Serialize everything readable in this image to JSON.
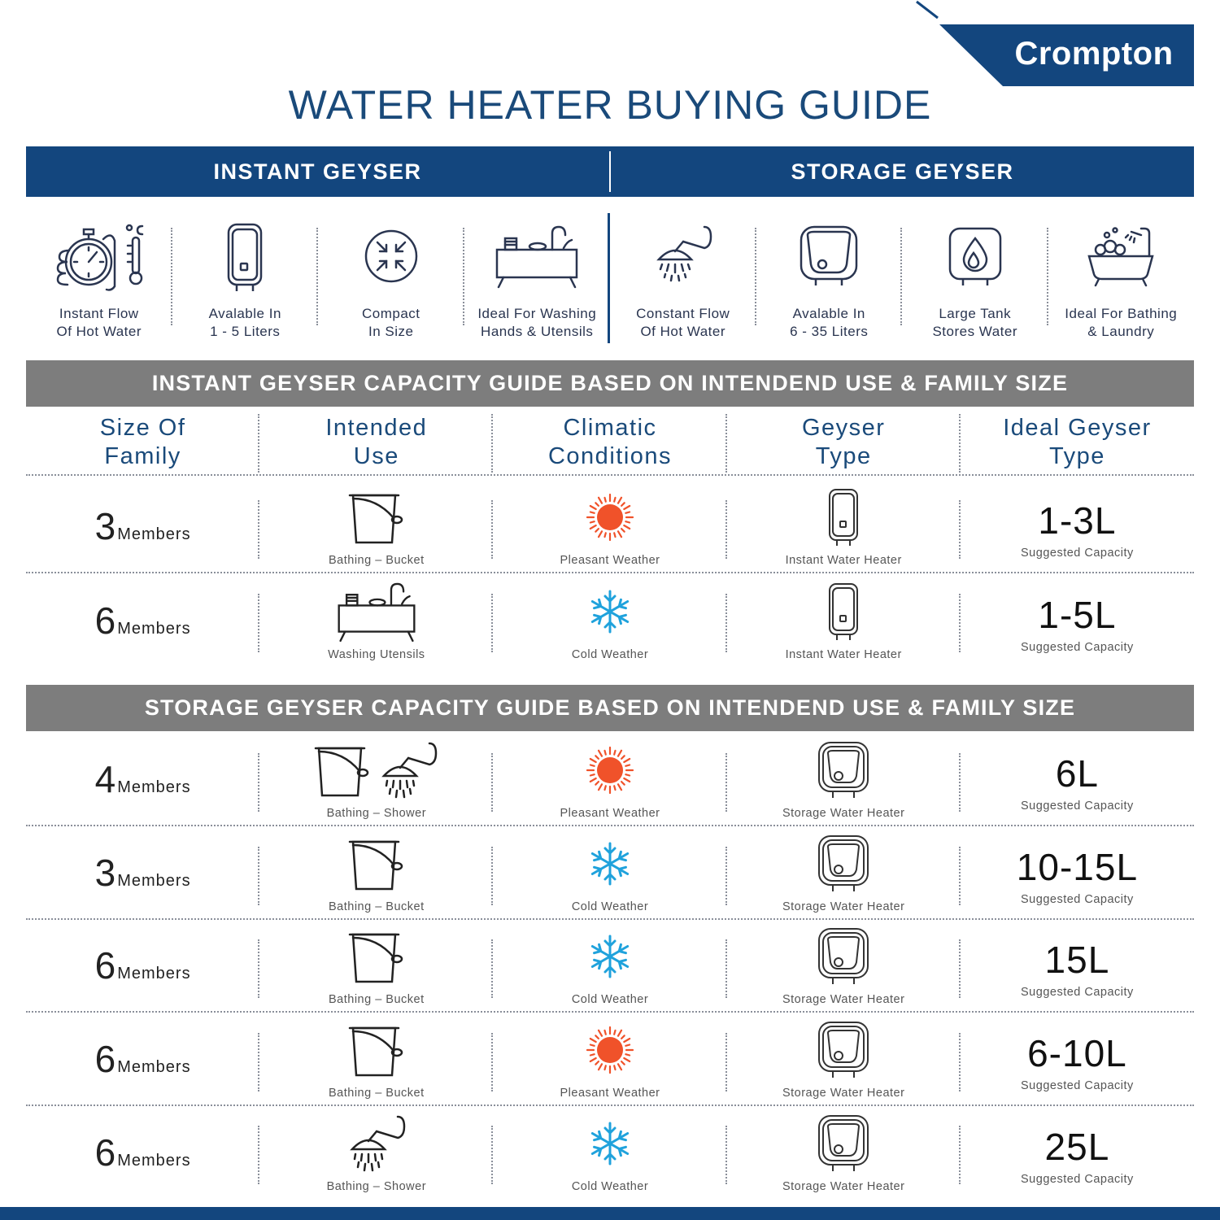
{
  "brand": {
    "name": "Crompton",
    "color": "#13467e"
  },
  "title": "WATER HEATER BUYING GUIDE",
  "categories": {
    "instant": "INSTANT GEYSER",
    "storage": "STORAGE GEYSER"
  },
  "features": [
    {
      "icon": "stopwatch-thermometer-icon",
      "line1": "Instant Flow",
      "line2": "Of Hot Water"
    },
    {
      "icon": "instant-heater-icon",
      "line1": "Avalable In",
      "line2": "1 - 5 Liters"
    },
    {
      "icon": "compact-arrows-icon",
      "line1": "Compact",
      "line2": "In Size"
    },
    {
      "icon": "sink-utensils-icon",
      "line1": "Ideal For Washing",
      "line2": "Hands & Utensils"
    },
    {
      "icon": "shower-icon",
      "line1": "Constant Flow",
      "line2": "Of Hot Water"
    },
    {
      "icon": "storage-heater-icon",
      "line1": "Avalable In",
      "line2": "6 - 35 Liters"
    },
    {
      "icon": "water-tank-icon",
      "line1": "Large Tank",
      "line2": "Stores Water"
    },
    {
      "icon": "bathtub-icon",
      "line1": "Ideal For Bathing",
      "line2": "& Laundry"
    }
  ],
  "instant_guide_title": "INSTANT GEYSER CAPACITY GUIDE BASED ON INTENDEND USE & FAMILY SIZE",
  "storage_guide_title": "STORAGE GEYSER CAPACITY GUIDE BASED ON INTENDEND USE & FAMILY SIZE",
  "columns": [
    {
      "line1": "Size Of",
      "line2": "Family"
    },
    {
      "line1": "Intended",
      "line2": "Use"
    },
    {
      "line1": "Climatic",
      "line2": "Conditions"
    },
    {
      "line1": "Geyser",
      "line2": "Type"
    },
    {
      "line1": "Ideal Geyser",
      "line2": "Type"
    }
  ],
  "members_label": "Members",
  "capacity_label": "Suggested Capacity",
  "accent_colors": {
    "sun": "#f0522a",
    "snow": "#1fa2dc",
    "grey_bar": "#7d7d7d"
  },
  "instant_rows": [
    {
      "members": "3",
      "use": "Bathing – Bucket",
      "use_icon": "bucket-icon",
      "weather": "Pleasant Weather",
      "weather_icon": "sun-icon",
      "type": "Instant Water Heater",
      "capacity": "1-3L"
    },
    {
      "members": "6",
      "use": "Washing Utensils",
      "use_icon": "sink-utensils-icon",
      "weather": "Cold Weather",
      "weather_icon": "snowflake-icon",
      "type": "Instant Water Heater",
      "capacity": "1-5L"
    }
  ],
  "storage_rows": [
    {
      "members": "4",
      "use": "Bathing – Shower",
      "use_icon": "bucket-shower-icon",
      "weather": "Pleasant Weather",
      "weather_icon": "sun-icon",
      "type": "Storage Water Heater",
      "capacity": "6L"
    },
    {
      "members": "3",
      "use": "Bathing – Bucket",
      "use_icon": "bucket-icon",
      "weather": "Cold Weather",
      "weather_icon": "snowflake-icon",
      "type": "Storage Water Heater",
      "capacity": "10-15L"
    },
    {
      "members": "6",
      "use": "Bathing – Bucket",
      "use_icon": "bucket-icon",
      "weather": "Cold Weather",
      "weather_icon": "snowflake-icon",
      "type": "Storage Water Heater",
      "capacity": "15L"
    },
    {
      "members": "6",
      "use": "Bathing – Bucket",
      "use_icon": "bucket-icon",
      "weather": "Pleasant Weather",
      "weather_icon": "sun-icon",
      "type": "Storage Water Heater",
      "capacity": "6-10L"
    },
    {
      "members": "6",
      "use": "Bathing – Shower",
      "use_icon": "shower-icon",
      "weather": "Cold Weather",
      "weather_icon": "snowflake-icon",
      "type": "Storage Water Heater",
      "capacity": "25L"
    }
  ]
}
